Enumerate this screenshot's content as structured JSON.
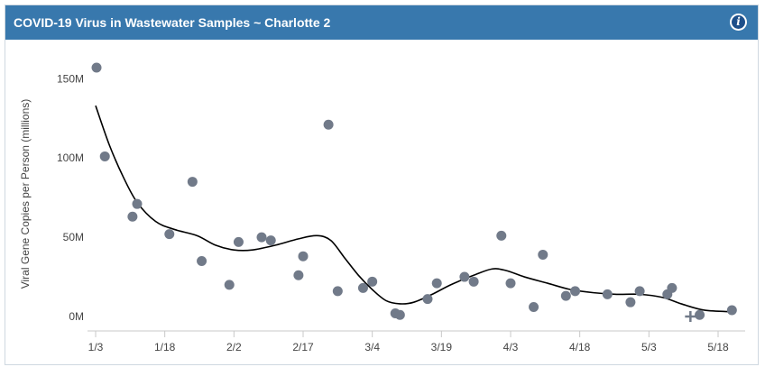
{
  "header": {
    "title": "COVID-19 Virus in Wastewater Samples ~ Charlotte 2",
    "info_icon": "info-icon",
    "accent_color": "#3878ad"
  },
  "chart_data": {
    "type": "scatter",
    "title": "COVID-19 Virus in Wastewater Samples ~ Charlotte 2",
    "ylabel": "Viral Gene Copies per Person (millions)",
    "xlabel": "",
    "ylim": [
      0,
      160
    ],
    "y_ticks": [
      {
        "value": 0,
        "label": "0M"
      },
      {
        "value": 50,
        "label": "50M"
      },
      {
        "value": 100,
        "label": "100M"
      },
      {
        "value": 150,
        "label": "150M"
      }
    ],
    "x_ticks": [
      {
        "value": 3,
        "label": "1/3"
      },
      {
        "value": 18,
        "label": "1/18"
      },
      {
        "value": 33,
        "label": "2/2"
      },
      {
        "value": 48,
        "label": "2/17"
      },
      {
        "value": 63,
        "label": "3/4"
      },
      {
        "value": 78,
        "label": "3/19"
      },
      {
        "value": 93,
        "label": "4/3"
      },
      {
        "value": 108,
        "label": "4/18"
      },
      {
        "value": 123,
        "label": "5/3"
      },
      {
        "value": 138,
        "label": "5/18"
      }
    ],
    "xlim": [
      2,
      141
    ],
    "grid": false,
    "point_color": "#717a89",
    "trend_color": "#000000",
    "series": [
      {
        "type": "scatter",
        "points": [
          {
            "x": 3.2,
            "y": 157
          },
          {
            "x": 5,
            "y": 101
          },
          {
            "x": 11,
            "y": 63
          },
          {
            "x": 12,
            "y": 71
          },
          {
            "x": 19,
            "y": 52
          },
          {
            "x": 24,
            "y": 85
          },
          {
            "x": 26,
            "y": 35
          },
          {
            "x": 32,
            "y": 20
          },
          {
            "x": 34,
            "y": 47
          },
          {
            "x": 39,
            "y": 50
          },
          {
            "x": 41,
            "y": 48
          },
          {
            "x": 47,
            "y": 26
          },
          {
            "x": 48,
            "y": 38
          },
          {
            "x": 53.5,
            "y": 121
          },
          {
            "x": 55.5,
            "y": 16
          },
          {
            "x": 61,
            "y": 18
          },
          {
            "x": 63,
            "y": 22
          },
          {
            "x": 68,
            "y": 2
          },
          {
            "x": 69,
            "y": 1
          },
          {
            "x": 75,
            "y": 11
          },
          {
            "x": 77,
            "y": 21
          },
          {
            "x": 83,
            "y": 25
          },
          {
            "x": 85,
            "y": 22
          },
          {
            "x": 91,
            "y": 51
          },
          {
            "x": 93,
            "y": 21
          },
          {
            "x": 98,
            "y": 6
          },
          {
            "x": 100,
            "y": 39
          },
          {
            "x": 105,
            "y": 13
          },
          {
            "x": 107,
            "y": 16
          },
          {
            "x": 114,
            "y": 14
          },
          {
            "x": 119,
            "y": 9
          },
          {
            "x": 121,
            "y": 16
          },
          {
            "x": 127,
            "y": 14
          },
          {
            "x": 128,
            "y": 18
          },
          {
            "x": 134,
            "y": 1
          },
          {
            "x": 141,
            "y": 4
          }
        ]
      },
      {
        "type": "line",
        "points": [
          {
            "x": 3,
            "y": 133
          },
          {
            "x": 6,
            "y": 108
          },
          {
            "x": 9,
            "y": 88
          },
          {
            "x": 12,
            "y": 72
          },
          {
            "x": 16,
            "y": 60
          },
          {
            "x": 20,
            "y": 55
          },
          {
            "x": 25,
            "y": 51
          },
          {
            "x": 29,
            "y": 45
          },
          {
            "x": 33,
            "y": 42
          },
          {
            "x": 37,
            "y": 42
          },
          {
            "x": 42,
            "y": 45
          },
          {
            "x": 47,
            "y": 49
          },
          {
            "x": 51,
            "y": 51
          },
          {
            "x": 54,
            "y": 48
          },
          {
            "x": 57,
            "y": 37
          },
          {
            "x": 60,
            "y": 26
          },
          {
            "x": 63,
            "y": 17
          },
          {
            "x": 66,
            "y": 10
          },
          {
            "x": 69,
            "y": 8
          },
          {
            "x": 72,
            "y": 9
          },
          {
            "x": 76,
            "y": 14
          },
          {
            "x": 80,
            "y": 20
          },
          {
            "x": 85,
            "y": 26
          },
          {
            "x": 89,
            "y": 30
          },
          {
            "x": 92,
            "y": 29
          },
          {
            "x": 96,
            "y": 25
          },
          {
            "x": 101,
            "y": 21
          },
          {
            "x": 106,
            "y": 17
          },
          {
            "x": 111,
            "y": 15
          },
          {
            "x": 116,
            "y": 14
          },
          {
            "x": 121,
            "y": 14
          },
          {
            "x": 126,
            "y": 12
          },
          {
            "x": 130,
            "y": 8
          },
          {
            "x": 135,
            "y": 4
          },
          {
            "x": 141,
            "y": 3
          }
        ]
      }
    ],
    "annotations": [
      {
        "type": "plus-marker",
        "x": 132,
        "y": 0
      }
    ]
  }
}
